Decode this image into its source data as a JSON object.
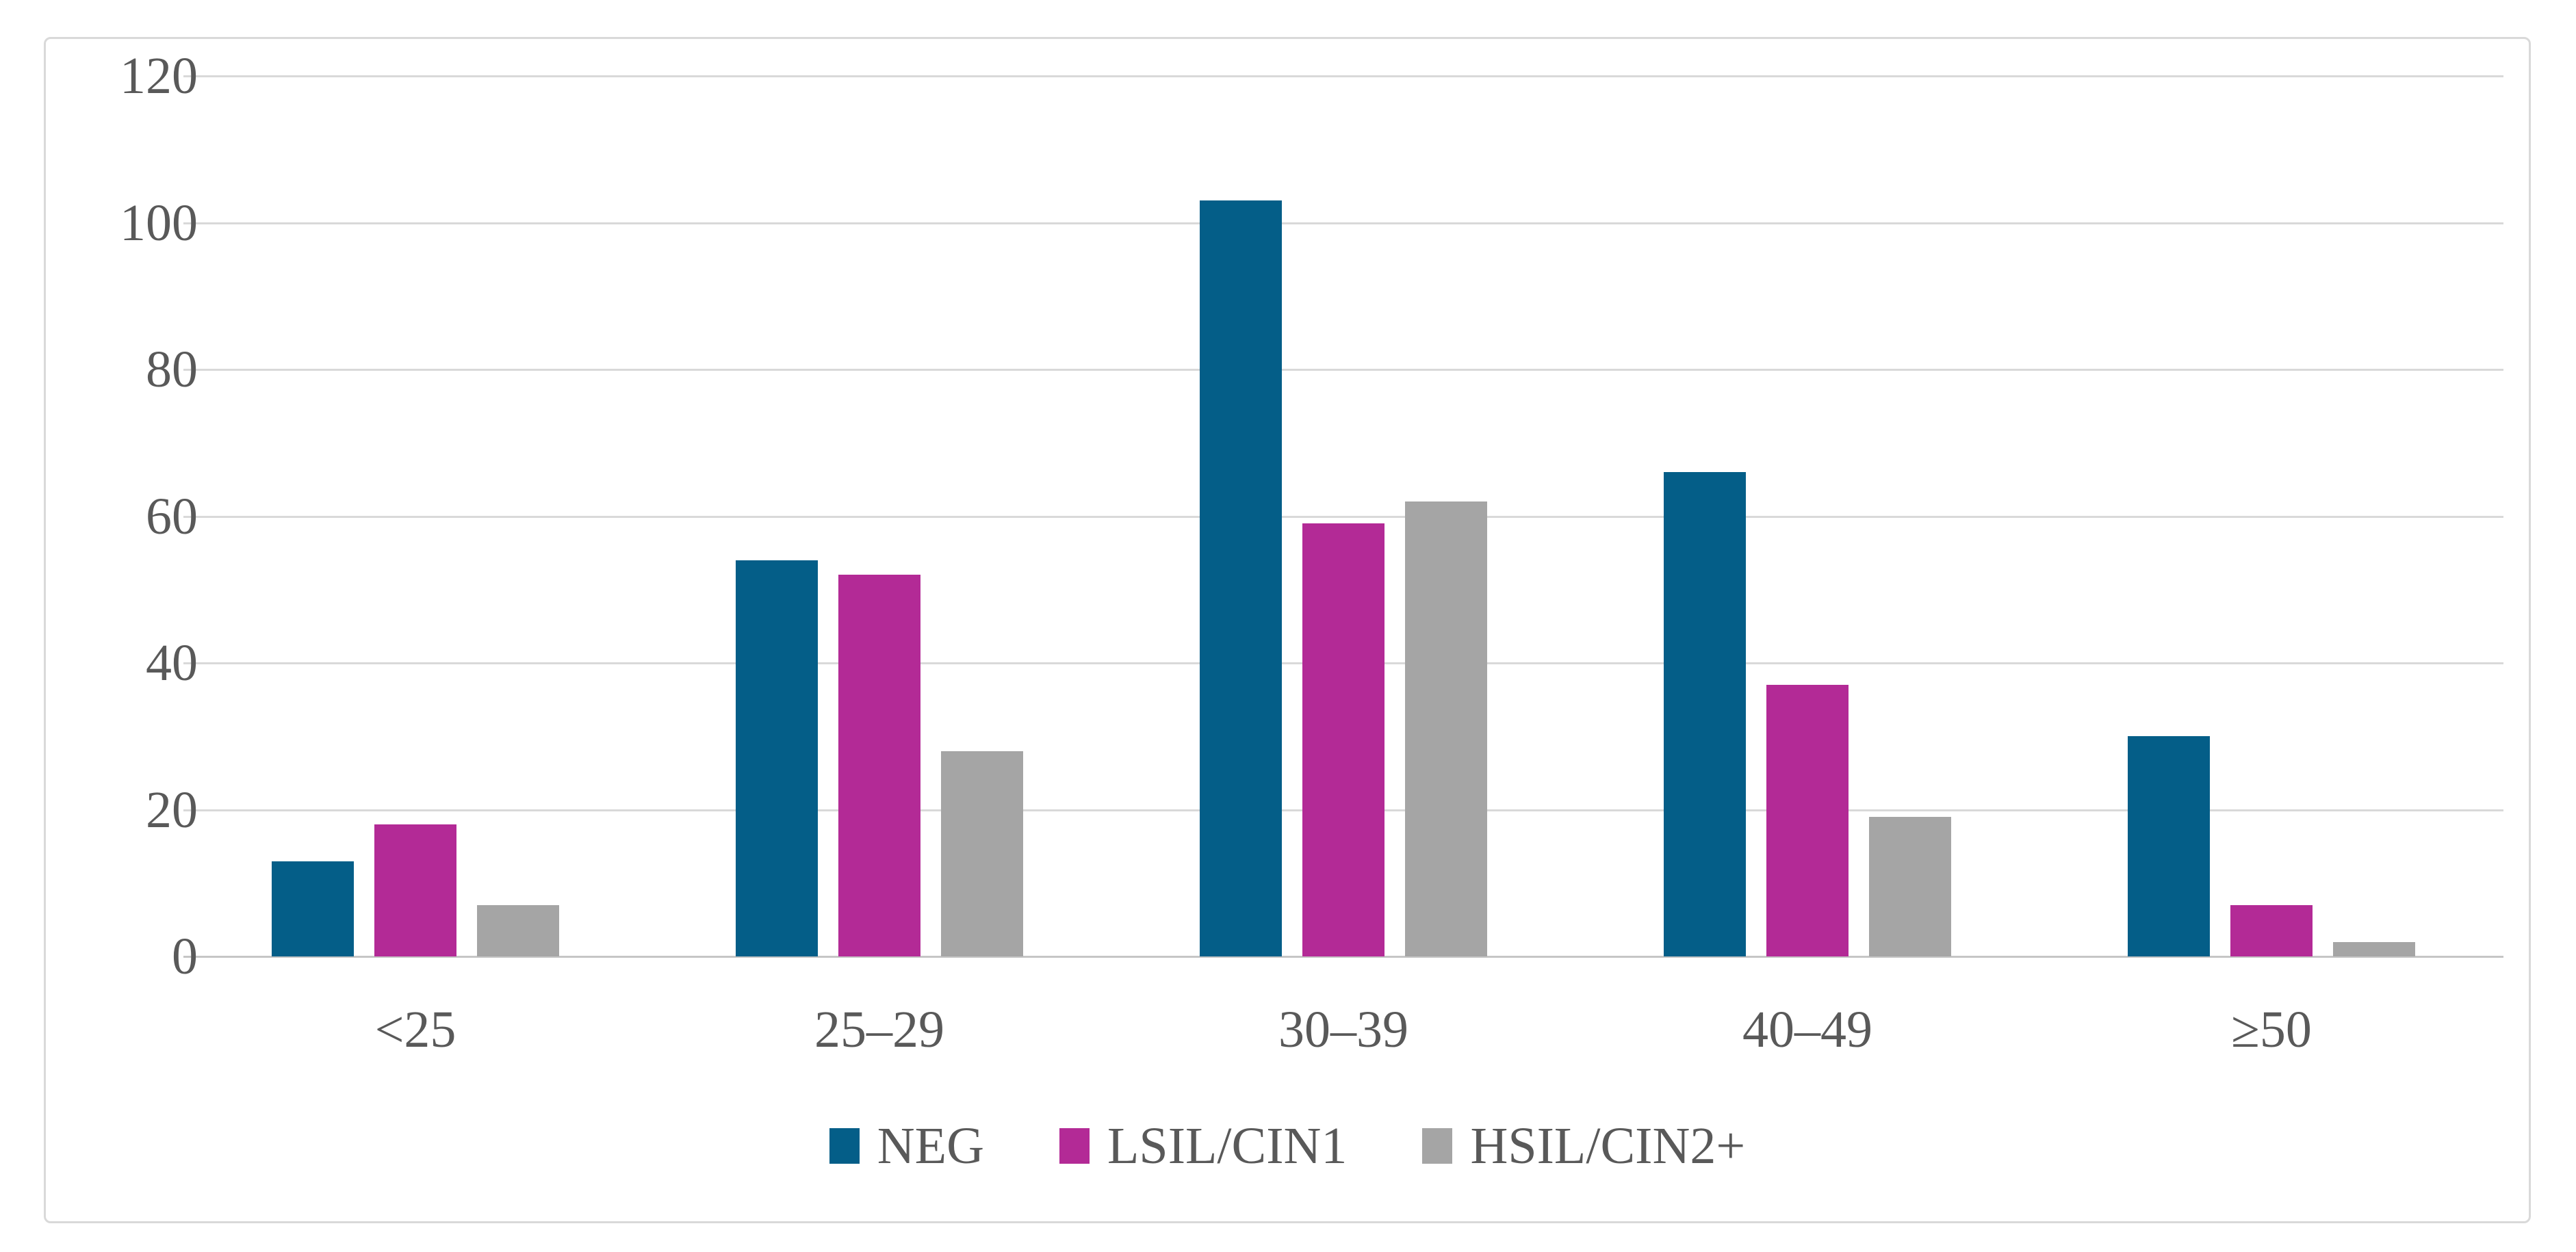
{
  "chart_data": {
    "type": "bar",
    "categories": [
      "<25",
      "25–29",
      "30–39",
      "40–49",
      "≥50"
    ],
    "series": [
      {
        "name": "NEG",
        "color": "#045e88",
        "values": [
          13,
          54,
          103,
          66,
          30
        ]
      },
      {
        "name": "LSIL/CIN1",
        "color": "#b32a96",
        "values": [
          18,
          52,
          59,
          37,
          7
        ]
      },
      {
        "name": "HSIL/CIN2+",
        "color": "#a5a5a5",
        "values": [
          7,
          28,
          62,
          19,
          2
        ]
      }
    ],
    "xlabel": "",
    "ylabel": "",
    "ylim": [
      0,
      120
    ],
    "y_ticks": [
      0,
      20,
      40,
      60,
      80,
      100,
      120
    ],
    "grid": true,
    "legend_position": "bottom",
    "colors": {
      "tick_text": "#595959",
      "gridline": "#d9d9d9",
      "axis_line": "#c6c6c6",
      "frame_border": "#d9d9d9",
      "background": "#ffffff"
    }
  }
}
